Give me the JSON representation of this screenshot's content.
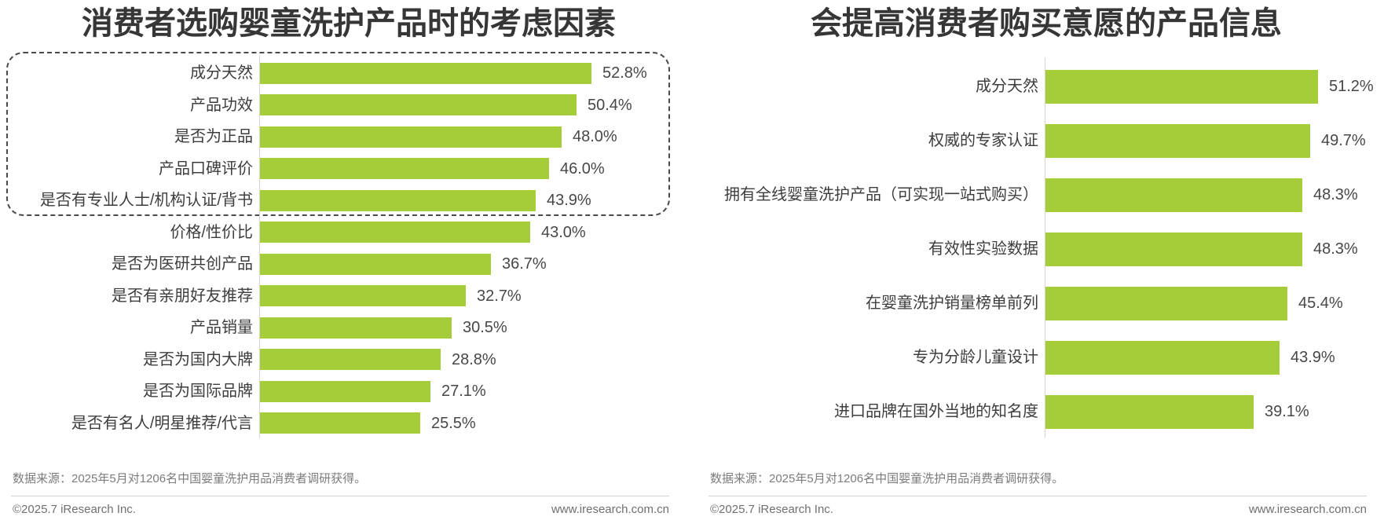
{
  "accent_green": "#a5cd39",
  "chart_data": [
    {
      "type": "bar",
      "orientation": "horizontal",
      "title": "消费者选购婴童洗护产品时的考虑因素",
      "unit": "%",
      "bar_color": "#a5cd39",
      "categories": [
        "成分天然",
        "产品功效",
        "是否为正品",
        "产品口碑评价",
        "是否有专业人士/机构认证/背书",
        "价格/性价比",
        "是否为医研共创产品",
        "是否有亲朋好友推荐",
        "产品销量",
        "是否为国内大牌",
        "是否为国际品牌",
        "是否有名人/明星推荐/代言"
      ],
      "values": [
        52.8,
        50.4,
        48.0,
        46.0,
        43.9,
        43.0,
        36.7,
        32.7,
        30.5,
        28.8,
        27.1,
        25.5
      ],
      "xlim": [
        0,
        60
      ],
      "grid": false,
      "highlighted_top_categories": 5,
      "highlight_style": "dashed rounded box around top 5 bars"
    },
    {
      "type": "bar",
      "orientation": "horizontal",
      "title": "会提高消费者购买意愿的产品信息",
      "unit": "%",
      "bar_color": "#a5cd39",
      "categories": [
        "成分天然",
        "权威的专家认证",
        "拥有全线婴童洗护产品（可实现一站式购买）",
        "有效性实验数据",
        "在婴童洗护销量榜单前列",
        "专为分龄儿童设计",
        "进口品牌在国外当地的知名度"
      ],
      "values": [
        51.2,
        49.7,
        48.3,
        48.3,
        45.4,
        43.9,
        39.1
      ],
      "xlim": [
        0,
        60
      ],
      "grid": false
    }
  ],
  "footer": {
    "source": "数据来源：2025年5月对1206名中国婴童洗护用品消费者调研获得。",
    "copyright": "©2025.7 iResearch Inc.",
    "website": "www.iresearch.com.cn"
  }
}
